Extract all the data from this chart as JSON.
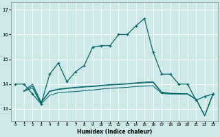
{
  "xlabel": "Humidex (Indice chaleur)",
  "background_color": "#cce8e8",
  "grid_color": "#ffffff",
  "line_color": "#006666",
  "xlim": [
    -0.5,
    23.5
  ],
  "ylim": [
    12.5,
    17.3
  ],
  "yticks": [
    13,
    14,
    15,
    16,
    17
  ],
  "xticks": [
    0,
    1,
    2,
    3,
    4,
    5,
    6,
    7,
    8,
    9,
    10,
    11,
    12,
    13,
    14,
    15,
    16,
    17,
    18,
    19,
    20,
    21,
    22,
    23
  ],
  "s1_x": [
    0,
    1,
    2,
    3,
    4,
    5,
    6,
    7,
    8,
    9,
    10,
    11,
    12,
    13,
    14,
    15,
    16,
    17,
    18,
    19,
    20,
    21,
    22,
    23
  ],
  "s1_y": [
    14.0,
    14.0,
    13.6,
    13.2,
    14.4,
    14.85,
    14.1,
    14.5,
    14.75,
    15.5,
    15.55,
    15.55,
    16.0,
    16.0,
    16.35,
    16.65,
    15.3,
    14.4,
    14.4,
    14.0,
    14.0,
    13.35,
    13.5,
    13.6
  ],
  "s2_x": [
    1,
    2,
    3,
    4,
    5,
    6,
    7,
    8,
    9,
    10,
    11,
    12,
    13,
    14,
    15,
    16,
    17,
    18,
    19,
    20,
    21,
    22,
    23
  ],
  "s2_y": [
    13.7,
    13.85,
    13.2,
    13.55,
    13.65,
    13.68,
    13.7,
    13.73,
    13.76,
    13.8,
    13.83,
    13.85,
    13.87,
    13.9,
    13.92,
    13.93,
    13.62,
    13.6,
    13.6,
    13.6,
    13.38,
    12.72,
    13.62
  ],
  "s3_x": [
    1,
    2,
    3,
    4,
    5,
    6,
    7,
    8,
    9,
    10,
    11,
    12,
    13,
    14,
    15,
    16,
    17,
    18,
    19,
    20,
    21,
    22,
    23
  ],
  "s3_y": [
    13.72,
    13.92,
    13.25,
    13.7,
    13.78,
    13.82,
    13.85,
    13.88,
    13.9,
    13.93,
    13.96,
    13.98,
    14.0,
    14.03,
    14.05,
    14.07,
    13.65,
    13.62,
    13.6,
    13.6,
    13.38,
    12.72,
    13.62
  ],
  "s4_x": [
    1,
    2,
    3,
    4,
    5,
    6,
    7,
    8,
    9,
    10,
    11,
    12,
    13,
    14,
    15,
    16,
    17,
    18,
    19,
    20,
    21,
    22,
    23
  ],
  "s4_y": [
    13.72,
    14.0,
    13.28,
    13.72,
    13.8,
    13.84,
    13.87,
    13.9,
    13.92,
    13.95,
    13.98,
    14.0,
    14.02,
    14.05,
    14.08,
    14.1,
    13.68,
    13.63,
    13.62,
    13.61,
    13.4,
    12.73,
    13.64
  ]
}
